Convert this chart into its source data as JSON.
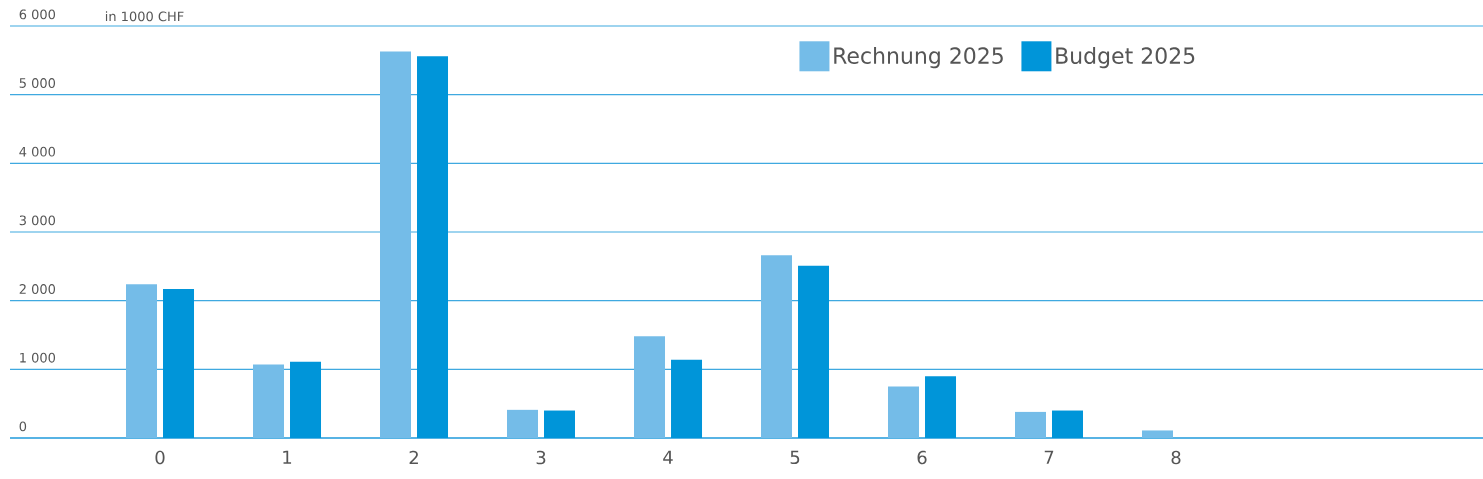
{
  "chart_data": {
    "type": "bar",
    "ylabel": "in 1000 CHF",
    "categories": [
      "0",
      "1",
      "2",
      "3",
      "4",
      "5",
      "6",
      "7",
      "8"
    ],
    "series": [
      {
        "name": "Rechnung 2025",
        "color": "#74bce8",
        "values": [
          2240,
          1070,
          5630,
          410,
          1480,
          2660,
          750,
          380,
          110
        ]
      },
      {
        "name": "Budget 2025",
        "color": "#0095d9",
        "values": [
          2170,
          1110,
          5560,
          400,
          1140,
          2510,
          900,
          400,
          null
        ]
      }
    ],
    "ylim": [
      0,
      6000
    ],
    "yticks": [
      {
        "value": 0,
        "label": "0"
      },
      {
        "value": 1000,
        "label": "1 000"
      },
      {
        "value": 2000,
        "label": "2 000"
      },
      {
        "value": 3000,
        "label": "3 000"
      },
      {
        "value": 4000,
        "label": "4 000"
      },
      {
        "value": 5000,
        "label": "5 000"
      },
      {
        "value": 6000,
        "label": "6 000"
      }
    ],
    "grid": "y",
    "legend": "top right"
  }
}
